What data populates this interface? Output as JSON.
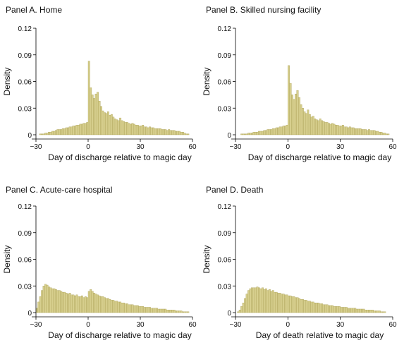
{
  "chart_data": [
    {
      "type": "bar",
      "title": "Panel A. Home",
      "xlabel": "Day of discharge relative to magic day",
      "ylabel": "Density",
      "xlim": [
        -30,
        60
      ],
      "ylim": [
        0,
        0.12
      ],
      "xticks": [
        -30,
        0,
        30,
        60
      ],
      "xtick_labels": [
        "−30",
        "0",
        "30",
        "60"
      ],
      "yticks": [
        0,
        0.03,
        0.06,
        0.09,
        0.12
      ],
      "ytick_labels": [
        "0",
        "0.03",
        "0.06",
        "0.09",
        "0.12"
      ],
      "bar_color": "#d7cf8e",
      "bar_edge": "#a59a4e",
      "x": [
        -30,
        -29,
        -28,
        -27,
        -26,
        -25,
        -24,
        -23,
        -22,
        -21,
        -20,
        -19,
        -18,
        -17,
        -16,
        -15,
        -14,
        -13,
        -12,
        -11,
        -10,
        -9,
        -8,
        -7,
        -6,
        -5,
        -4,
        -3,
        -2,
        -1,
        0,
        1,
        2,
        3,
        4,
        5,
        6,
        7,
        8,
        9,
        10,
        11,
        12,
        13,
        14,
        15,
        16,
        17,
        18,
        19,
        20,
        21,
        22,
        23,
        24,
        25,
        26,
        27,
        28,
        29,
        30,
        31,
        32,
        33,
        34,
        35,
        36,
        37,
        38,
        39,
        40,
        41,
        42,
        43,
        44,
        45,
        46,
        47,
        48,
        49,
        50,
        51,
        52,
        53,
        54,
        55,
        56,
        57,
        58,
        59
      ],
      "values": [
        0.0,
        0.0,
        0.001,
        0.001,
        0.001,
        0.002,
        0.002,
        0.003,
        0.003,
        0.004,
        0.004,
        0.005,
        0.006,
        0.006,
        0.006,
        0.007,
        0.007,
        0.008,
        0.008,
        0.009,
        0.009,
        0.01,
        0.01,
        0.011,
        0.011,
        0.012,
        0.012,
        0.013,
        0.013,
        0.014,
        0.083,
        0.053,
        0.045,
        0.041,
        0.046,
        0.048,
        0.038,
        0.032,
        0.027,
        0.025,
        0.024,
        0.026,
        0.022,
        0.023,
        0.02,
        0.018,
        0.017,
        0.016,
        0.019,
        0.016,
        0.015,
        0.014,
        0.014,
        0.013,
        0.012,
        0.013,
        0.012,
        0.011,
        0.011,
        0.01,
        0.01,
        0.011,
        0.009,
        0.009,
        0.008,
        0.009,
        0.008,
        0.008,
        0.007,
        0.007,
        0.007,
        0.007,
        0.006,
        0.006,
        0.006,
        0.005,
        0.006,
        0.005,
        0.005,
        0.005,
        0.004,
        0.004,
        0.004,
        0.003,
        0.003,
        0.002,
        0.001,
        0.001,
        0.0,
        0.0
      ]
    },
    {
      "type": "bar",
      "title": "Panel B. Skilled nursing facility",
      "xlabel": "Day of discharge relative to magic day",
      "ylabel": "Density",
      "xlim": [
        -30,
        60
      ],
      "ylim": [
        0,
        0.12
      ],
      "xticks": [
        -30,
        0,
        30,
        60
      ],
      "xtick_labels": [
        "−30",
        "0",
        "30",
        "60"
      ],
      "yticks": [
        0,
        0.03,
        0.06,
        0.09,
        0.12
      ],
      "ytick_labels": [
        "0",
        "0.03",
        "0.06",
        "0.09",
        "0.12"
      ],
      "bar_color": "#d7cf8e",
      "bar_edge": "#a59a4e",
      "x": [
        -30,
        -29,
        -28,
        -27,
        -26,
        -25,
        -24,
        -23,
        -22,
        -21,
        -20,
        -19,
        -18,
        -17,
        -16,
        -15,
        -14,
        -13,
        -12,
        -11,
        -10,
        -9,
        -8,
        -7,
        -6,
        -5,
        -4,
        -3,
        -2,
        -1,
        0,
        1,
        2,
        3,
        4,
        5,
        6,
        7,
        8,
        9,
        10,
        11,
        12,
        13,
        14,
        15,
        16,
        17,
        18,
        19,
        20,
        21,
        22,
        23,
        24,
        25,
        26,
        27,
        28,
        29,
        30,
        31,
        32,
        33,
        34,
        35,
        36,
        37,
        38,
        39,
        40,
        41,
        42,
        43,
        44,
        45,
        46,
        47,
        48,
        49,
        50,
        51,
        52,
        53,
        54,
        55,
        56,
        57,
        58,
        59
      ],
      "values": [
        0.0,
        0.0,
        0.0,
        0.001,
        0.001,
        0.001,
        0.001,
        0.002,
        0.002,
        0.002,
        0.003,
        0.003,
        0.003,
        0.004,
        0.004,
        0.004,
        0.005,
        0.005,
        0.006,
        0.006,
        0.006,
        0.007,
        0.007,
        0.008,
        0.008,
        0.009,
        0.009,
        0.01,
        0.01,
        0.011,
        0.078,
        0.058,
        0.045,
        0.04,
        0.046,
        0.05,
        0.042,
        0.034,
        0.03,
        0.026,
        0.024,
        0.028,
        0.023,
        0.02,
        0.021,
        0.018,
        0.017,
        0.016,
        0.018,
        0.016,
        0.015,
        0.014,
        0.014,
        0.013,
        0.012,
        0.013,
        0.012,
        0.011,
        0.011,
        0.01,
        0.01,
        0.011,
        0.009,
        0.009,
        0.008,
        0.009,
        0.008,
        0.008,
        0.007,
        0.007,
        0.007,
        0.007,
        0.006,
        0.006,
        0.006,
        0.005,
        0.006,
        0.005,
        0.005,
        0.005,
        0.004,
        0.004,
        0.003,
        0.003,
        0.002,
        0.002,
        0.001,
        0.001,
        0.0,
        0.0
      ]
    },
    {
      "type": "bar",
      "title": "Panel C. Acute-care hospital",
      "xlabel": "Day of discharge relative to magic day",
      "ylabel": "Density",
      "xlim": [
        -30,
        60
      ],
      "ylim": [
        0,
        0.12
      ],
      "xticks": [
        -30,
        0,
        30,
        60
      ],
      "xtick_labels": [
        "−30",
        "0",
        "30",
        "60"
      ],
      "yticks": [
        0,
        0.03,
        0.06,
        0.09,
        0.12
      ],
      "ytick_labels": [
        "0",
        "0.03",
        "0.06",
        "0.09",
        "0.12"
      ],
      "bar_color": "#d7cf8e",
      "bar_edge": "#a59a4e",
      "x": [
        -30,
        -29,
        -28,
        -27,
        -26,
        -25,
        -24,
        -23,
        -22,
        -21,
        -20,
        -19,
        -18,
        -17,
        -16,
        -15,
        -14,
        -13,
        -12,
        -11,
        -10,
        -9,
        -8,
        -7,
        -6,
        -5,
        -4,
        -3,
        -2,
        -1,
        0,
        1,
        2,
        3,
        4,
        5,
        6,
        7,
        8,
        9,
        10,
        11,
        12,
        13,
        14,
        15,
        16,
        17,
        18,
        19,
        20,
        21,
        22,
        23,
        24,
        25,
        26,
        27,
        28,
        29,
        30,
        31,
        32,
        33,
        34,
        35,
        36,
        37,
        38,
        39,
        40,
        41,
        42,
        43,
        44,
        45,
        46,
        47,
        48,
        49,
        50,
        51,
        52,
        53,
        54,
        55,
        56,
        57,
        58,
        59
      ],
      "values": [
        0.005,
        0.012,
        0.018,
        0.025,
        0.03,
        0.032,
        0.031,
        0.029,
        0.028,
        0.027,
        0.027,
        0.026,
        0.025,
        0.025,
        0.024,
        0.023,
        0.023,
        0.022,
        0.021,
        0.022,
        0.02,
        0.02,
        0.019,
        0.02,
        0.018,
        0.018,
        0.019,
        0.017,
        0.018,
        0.017,
        0.024,
        0.026,
        0.024,
        0.022,
        0.021,
        0.02,
        0.019,
        0.018,
        0.018,
        0.017,
        0.016,
        0.016,
        0.015,
        0.014,
        0.014,
        0.013,
        0.013,
        0.012,
        0.012,
        0.011,
        0.011,
        0.01,
        0.01,
        0.009,
        0.009,
        0.009,
        0.008,
        0.008,
        0.008,
        0.007,
        0.007,
        0.007,
        0.006,
        0.006,
        0.006,
        0.006,
        0.005,
        0.005,
        0.005,
        0.005,
        0.004,
        0.004,
        0.004,
        0.004,
        0.004,
        0.003,
        0.003,
        0.003,
        0.003,
        0.003,
        0.002,
        0.002,
        0.002,
        0.002,
        0.001,
        0.001,
        0.001,
        0.001,
        0.0,
        0.0
      ]
    },
    {
      "type": "bar",
      "title": "Panel D. Death",
      "xlabel": "Day of death relative to magic day",
      "ylabel": "Density",
      "xlim": [
        -30,
        60
      ],
      "ylim": [
        0,
        0.12
      ],
      "xticks": [
        -30,
        0,
        30,
        60
      ],
      "xtick_labels": [
        "−30",
        "0",
        "30",
        "60"
      ],
      "yticks": [
        0,
        0.03,
        0.06,
        0.09,
        0.12
      ],
      "ytick_labels": [
        "0",
        "0.03",
        "0.06",
        "0.09",
        "0.12"
      ],
      "bar_color": "#d7cf8e",
      "bar_edge": "#a59a4e",
      "x": [
        -30,
        -29,
        -28,
        -27,
        -26,
        -25,
        -24,
        -23,
        -22,
        -21,
        -20,
        -19,
        -18,
        -17,
        -16,
        -15,
        -14,
        -13,
        -12,
        -11,
        -10,
        -9,
        -8,
        -7,
        -6,
        -5,
        -4,
        -3,
        -2,
        -1,
        0,
        1,
        2,
        3,
        4,
        5,
        6,
        7,
        8,
        9,
        10,
        11,
        12,
        13,
        14,
        15,
        16,
        17,
        18,
        19,
        20,
        21,
        22,
        23,
        24,
        25,
        26,
        27,
        28,
        29,
        30,
        31,
        32,
        33,
        34,
        35,
        36,
        37,
        38,
        39,
        40,
        41,
        42,
        43,
        44,
        45,
        46,
        47,
        48,
        49,
        50,
        51,
        52,
        53,
        54,
        55,
        56,
        57,
        58,
        59
      ],
      "values": [
        0.0,
        0.001,
        0.003,
        0.007,
        0.011,
        0.016,
        0.021,
        0.025,
        0.027,
        0.028,
        0.028,
        0.028,
        0.029,
        0.028,
        0.027,
        0.028,
        0.026,
        0.027,
        0.025,
        0.026,
        0.024,
        0.025,
        0.023,
        0.023,
        0.022,
        0.022,
        0.021,
        0.021,
        0.02,
        0.02,
        0.019,
        0.019,
        0.018,
        0.018,
        0.017,
        0.017,
        0.016,
        0.015,
        0.015,
        0.014,
        0.014,
        0.013,
        0.013,
        0.012,
        0.012,
        0.011,
        0.011,
        0.011,
        0.01,
        0.01,
        0.009,
        0.009,
        0.009,
        0.008,
        0.008,
        0.008,
        0.007,
        0.007,
        0.007,
        0.007,
        0.006,
        0.006,
        0.006,
        0.006,
        0.005,
        0.005,
        0.005,
        0.005,
        0.005,
        0.004,
        0.004,
        0.004,
        0.004,
        0.004,
        0.003,
        0.003,
        0.003,
        0.003,
        0.003,
        0.002,
        0.002,
        0.002,
        0.002,
        0.001,
        0.001,
        0.001,
        0.0,
        0.0,
        0.0,
        0.0
      ]
    }
  ]
}
